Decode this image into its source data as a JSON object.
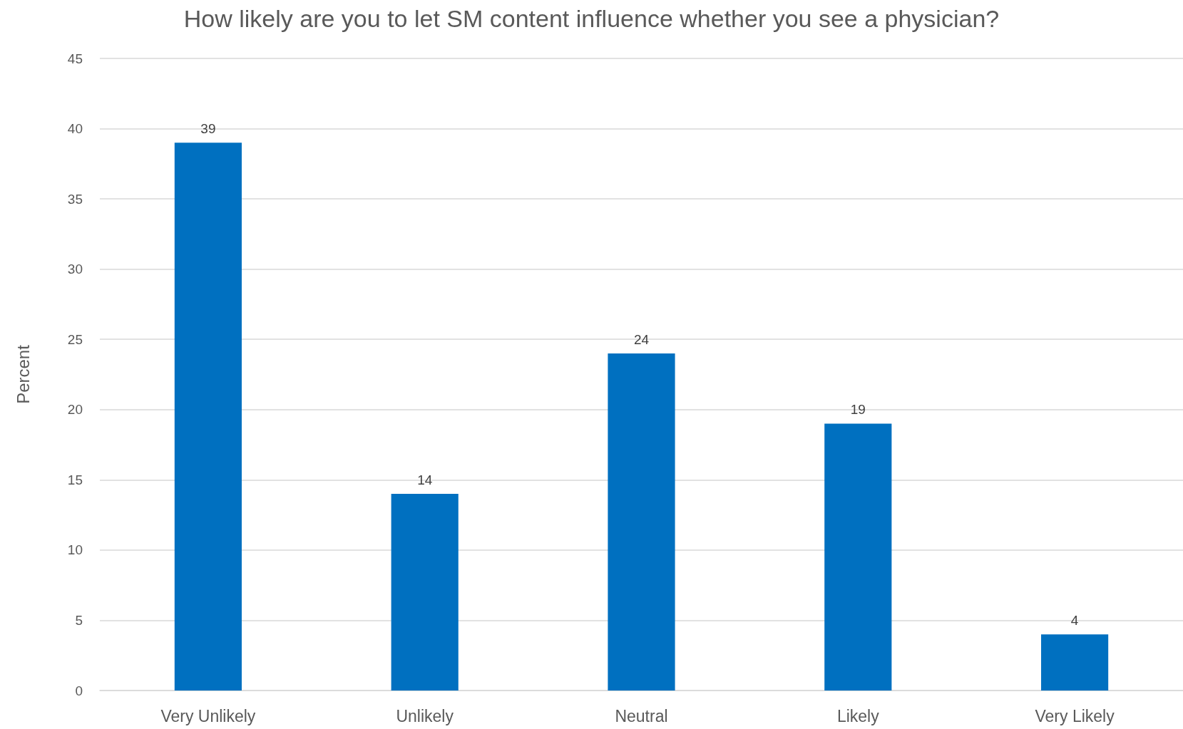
{
  "chart_data": {
    "type": "bar",
    "title": "How likely are you to let SM content influence whether you see a physician?",
    "ylabel": "Percent",
    "categories": [
      "Very Unlikely",
      "Unlikely",
      "Neutral",
      "Likely",
      "Very Likely"
    ],
    "values": [
      39,
      14,
      24,
      19,
      4
    ],
    "color": "#0070c0",
    "ylim": [
      0,
      45
    ],
    "yticks": [
      0,
      5,
      10,
      15,
      20,
      25,
      30,
      35,
      40,
      45
    ],
    "grid": "y",
    "data_labels": true
  }
}
